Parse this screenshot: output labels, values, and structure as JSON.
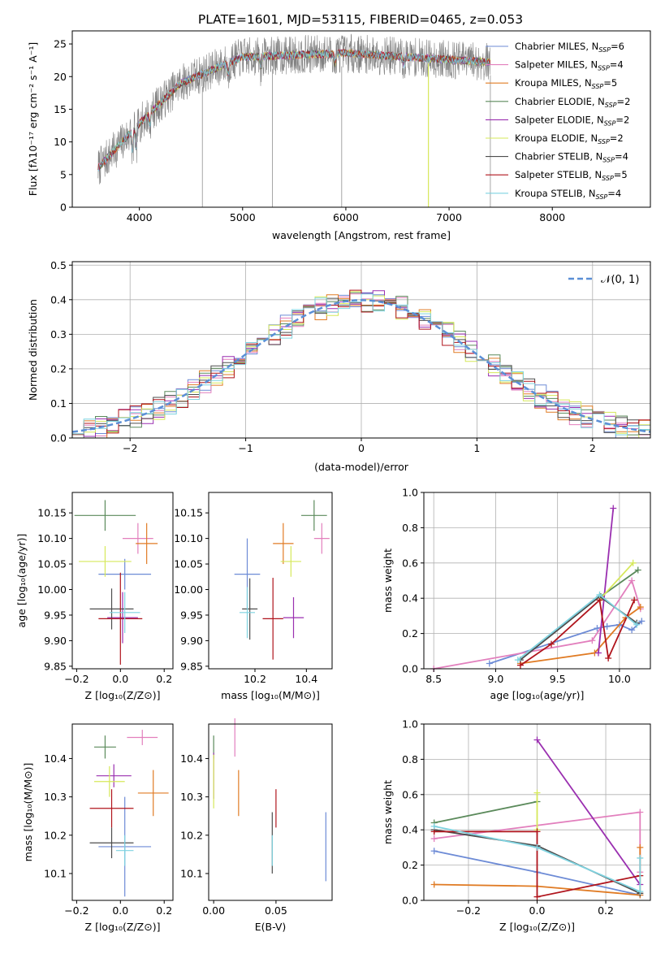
{
  "title": "PLATE=1601, MJD=53115, FIBERID=0465, z=0.053",
  "models": [
    {
      "label": "Chabrier MILES, N",
      "sub": "SSP",
      "suffix": "=6",
      "color": "#6d8bd6"
    },
    {
      "label": "Salpeter MILES, N",
      "sub": "SSP",
      "suffix": "=4",
      "color": "#e27fbd"
    },
    {
      "label": "Kroupa MILES, N",
      "sub": "SSP",
      "suffix": "=5",
      "color": "#e07b24"
    },
    {
      "label": "Chabrier ELODIE, N",
      "sub": "SSP",
      "suffix": "=2",
      "color": "#5b8a5b"
    },
    {
      "label": "Salpeter ELODIE, N",
      "sub": "SSP",
      "suffix": "=2",
      "color": "#9a2fb0"
    },
    {
      "label": "Kroupa ELODIE, N",
      "sub": "SSP",
      "suffix": "=2",
      "color": "#d6e85a"
    },
    {
      "label": "Chabrier STELIB, N",
      "sub": "SSP",
      "suffix": "=4",
      "color": "#4d4d4d"
    },
    {
      "label": "Salpeter STELIB, N",
      "sub": "SSP",
      "suffix": "=5",
      "color": "#b0141c"
    },
    {
      "label": "Kroupa STELIB, N",
      "sub": "SSP",
      "suffix": "=4",
      "color": "#7fd3e0"
    }
  ],
  "chart_data": [
    {
      "id": "spectrum",
      "type": "line",
      "xlabel": "wavelength [Angstrom, rest frame]",
      "ylabel": "Flux [fλ10⁻¹⁷ erg cm⁻² s⁻¹ A⁻¹]",
      "xlim": [
        3350,
        8950
      ],
      "ylim": [
        0,
        27
      ],
      "xticks": [
        "4000",
        "5000",
        "6000",
        "7000",
        "8000"
      ],
      "yticks": [
        "0",
        "5",
        "10",
        "15",
        "20",
        "25"
      ],
      "data_range": [
        3600,
        7400
      ],
      "observed_color": "#808080",
      "grid": false,
      "legend": "right"
    },
    {
      "id": "residuals",
      "type": "bar",
      "xlabel": "(data-model)/error",
      "ylabel": "Normed distribution",
      "xlim": [
        -2.5,
        2.5
      ],
      "ylim": [
        0,
        0.51
      ],
      "xticks": [
        "−2",
        "−1",
        "0",
        "1",
        "2"
      ],
      "yticks": [
        "0.0",
        "0.1",
        "0.2",
        "0.3",
        "0.4",
        "0.5"
      ],
      "bin_width": 0.1,
      "legend_label": "𝒩(0, 1)",
      "grid": true,
      "legend": "top-right"
    },
    {
      "id": "age-vs-Z",
      "type": "scatter",
      "xlabel": "Z [log₁₀(Z/Z⊙)]",
      "ylabel": "age  [log₁₀(age/yr)]",
      "xticks": [
        "−0.2",
        "0.0",
        "0.2"
      ],
      "yticks": [
        "9.85",
        "9.90",
        "9.95",
        "10.00",
        "10.05",
        "10.10",
        "10.15"
      ],
      "points": [
        {
          "x": 0.02,
          "y": 10.03,
          "xerr": 0.12,
          "yerr": 0.03
        },
        {
          "x": 0.08,
          "y": 10.1,
          "xerr": 0.07,
          "yerr": 0.03
        },
        {
          "x": 0.12,
          "y": 10.09,
          "xerr": 0.05,
          "yerr": 0.04
        },
        {
          "x": -0.07,
          "y": 10.145,
          "xerr": 0.14,
          "yerr": 0.03
        },
        {
          "x": 0.01,
          "y": 9.945,
          "xerr": 0.07,
          "yerr": 0.05
        },
        {
          "x": -0.07,
          "y": 10.055,
          "xerr": 0.12,
          "yerr": 0.03
        },
        {
          "x": -0.04,
          "y": 9.962,
          "xerr": 0.1,
          "yerr": 0.04
        },
        {
          "x": 0.0,
          "y": 9.943,
          "xerr": 0.1,
          "yerr": 0.09
        },
        {
          "x": 0.02,
          "y": 9.955,
          "xerr": 0.07,
          "yerr": 0.04
        }
      ]
    },
    {
      "id": "age-vs-mass",
      "type": "scatter",
      "xlabel": "mass [log₁₀(M/M⊙)]",
      "ylabel": "",
      "xticks": [
        "10.2",
        "10.4"
      ],
      "yticks": [
        "9.85",
        "9.90",
        "9.95",
        "10.00",
        "10.05",
        "10.10",
        "10.15"
      ],
      "points": [
        {
          "x": 10.17,
          "y": 10.03,
          "xerr": 0.05,
          "yerr": 0.07
        },
        {
          "x": 10.46,
          "y": 10.1,
          "xerr": 0.03,
          "yerr": 0.03
        },
        {
          "x": 10.31,
          "y": 10.09,
          "xerr": 0.04,
          "yerr": 0.04
        },
        {
          "x": 10.43,
          "y": 10.145,
          "xerr": 0.05,
          "yerr": 0.03
        },
        {
          "x": 10.35,
          "y": 9.945,
          "xerr": 0.04,
          "yerr": 0.04
        },
        {
          "x": 10.34,
          "y": 10.055,
          "xerr": 0.04,
          "yerr": 0.03
        },
        {
          "x": 10.18,
          "y": 9.962,
          "xerr": 0.03,
          "yerr": 0.06
        },
        {
          "x": 10.27,
          "y": 9.943,
          "xerr": 0.04,
          "yerr": 0.08
        },
        {
          "x": 10.17,
          "y": 9.955,
          "xerr": 0.03,
          "yerr": 0.05
        }
      ]
    },
    {
      "id": "massweight-vs-age",
      "type": "line",
      "xlabel": "age  [log₁₀(age/yr)]",
      "ylabel": "mass weight",
      "xlim": [
        8.42,
        10.25
      ],
      "ylim": [
        0,
        1
      ],
      "xticks": [
        "8.5",
        "9.0",
        "9.5",
        "10.0"
      ],
      "yticks": [
        "0.0",
        "0.2",
        "0.4",
        "0.6",
        "0.8",
        "1.0"
      ],
      "grid": true,
      "series": [
        {
          "values": [
            [
              8.95,
              0.03
            ],
            [
              9.82,
              0.23
            ],
            [
              9.9,
              0.24
            ],
            [
              10.0,
              0.25
            ],
            [
              10.1,
              0.22
            ],
            [
              10.18,
              0.27
            ]
          ]
        },
        {
          "values": [
            [
              8.5,
              0.0
            ],
            [
              9.78,
              0.16
            ],
            [
              10.1,
              0.5
            ],
            [
              10.17,
              0.34
            ]
          ]
        },
        {
          "values": [
            [
              9.2,
              0.03
            ],
            [
              9.8,
              0.09
            ],
            [
              10.05,
              0.29
            ],
            [
              10.17,
              0.35
            ]
          ]
        },
        {
          "values": [
            [
              9.85,
              0.41
            ],
            [
              10.15,
              0.56
            ]
          ]
        },
        {
          "values": [
            [
              9.83,
              0.09
            ],
            [
              9.95,
              0.91
            ]
          ]
        },
        {
          "values": [
            [
              9.85,
              0.4
            ],
            [
              10.11,
              0.6
            ]
          ]
        },
        {
          "values": [
            [
              9.2,
              0.05
            ],
            [
              9.84,
              0.41
            ],
            [
              10.14,
              0.26
            ]
          ]
        },
        {
          "values": [
            [
              9.2,
              0.02
            ],
            [
              9.45,
              0.14
            ],
            [
              9.84,
              0.39
            ],
            [
              9.91,
              0.06
            ],
            [
              10.12,
              0.39
            ]
          ]
        },
        {
          "values": [
            [
              9.18,
              0.05
            ],
            [
              9.84,
              0.42
            ],
            [
              10.14,
              0.25
            ]
          ]
        }
      ]
    },
    {
      "id": "mass-vs-Z",
      "type": "scatter",
      "xlabel": "Z [log₁₀(Z/Z⊙)]",
      "ylabel": "mass [log₁₀(M/M⊙)]",
      "xticks": [
        "−0.2",
        "0.0",
        "0.2"
      ],
      "yticks": [
        "10.1",
        "10.2",
        "10.3",
        "10.4"
      ],
      "points": [
        {
          "x": 0.02,
          "y": 10.17,
          "xerr": 0.12,
          "yerr": 0.13
        },
        {
          "x": 0.1,
          "y": 10.455,
          "xerr": 0.07,
          "yerr": 0.02
        },
        {
          "x": 0.15,
          "y": 10.31,
          "xerr": 0.07,
          "yerr": 0.06
        },
        {
          "x": -0.07,
          "y": 10.43,
          "xerr": 0.05,
          "yerr": 0.03
        },
        {
          "x": -0.03,
          "y": 10.355,
          "xerr": 0.08,
          "yerr": 0.03
        },
        {
          "x": -0.05,
          "y": 10.34,
          "xerr": 0.07,
          "yerr": 0.04
        },
        {
          "x": -0.04,
          "y": 10.18,
          "xerr": 0.1,
          "yerr": 0.04
        },
        {
          "x": -0.04,
          "y": 10.27,
          "xerr": 0.1,
          "yerr": 0.05
        },
        {
          "x": 0.02,
          "y": 10.16,
          "xerr": 0.04,
          "yerr": 0.04
        }
      ]
    },
    {
      "id": "mass-vs-EBV",
      "type": "scatter",
      "xlabel": "E(B-V)",
      "ylabel": "",
      "xticks": [
        "0.00",
        "0.05"
      ],
      "yticks": [
        "10.1",
        "10.2",
        "10.3",
        "10.4"
      ],
      "points": [
        {
          "x": 0.09,
          "y": 10.17,
          "yerr": 0.09
        },
        {
          "x": 0.017,
          "y": 10.455,
          "yerr": 0.05
        },
        {
          "x": 0.02,
          "y": 10.31,
          "yerr": 0.06
        },
        {
          "x": 0.0,
          "y": 10.43,
          "yerr": 0.03
        },
        {
          "x": 0.0,
          "y": 10.355,
          "yerr": 0.06
        },
        {
          "x": 0.0,
          "y": 10.34,
          "yerr": 0.07
        },
        {
          "x": 0.047,
          "y": 10.18,
          "yerr": 0.08
        },
        {
          "x": 0.05,
          "y": 10.27,
          "yerr": 0.05
        },
        {
          "x": 0.047,
          "y": 10.16,
          "yerr": 0.04
        }
      ]
    },
    {
      "id": "massweight-vs-Z",
      "type": "line",
      "xlabel": "Z [log₁₀(Z/Z⊙)]",
      "ylabel": "mass weight",
      "xlim": [
        -0.33,
        0.33
      ],
      "ylim": [
        0,
        1
      ],
      "xticks": [
        "−0.2",
        "0.0",
        "0.2"
      ],
      "yticks": [
        "0.0",
        "0.2",
        "0.4",
        "0.6",
        "0.8",
        "1.0"
      ],
      "grid": true,
      "series": [
        {
          "values": [
            [
              -0.3,
              0.28
            ],
            [
              0.0,
              0.16
            ],
            [
              0.3,
              0.03
            ]
          ]
        },
        {
          "values": [
            [
              -0.3,
              0.35
            ],
            [
              0.3,
              0.5
            ],
            [
              0.3,
              0.16
            ]
          ]
        },
        {
          "values": [
            [
              -0.3,
              0.09
            ],
            [
              0.0,
              0.08
            ],
            [
              0.3,
              0.03
            ],
            [
              0.3,
              0.3
            ]
          ]
        },
        {
          "values": [
            [
              -0.3,
              0.44
            ],
            [
              0.0,
              0.56
            ]
          ]
        },
        {
          "values": [
            [
              0.0,
              0.91
            ],
            [
              0.3,
              0.09
            ]
          ]
        },
        {
          "values": [
            [
              0.0,
              0.61
            ],
            [
              0.0,
              0.4
            ]
          ]
        },
        {
          "values": [
            [
              -0.3,
              0.4
            ],
            [
              0.0,
              0.31
            ],
            [
              0.3,
              0.04
            ]
          ]
        },
        {
          "values": [
            [
              -0.3,
              0.39
            ],
            [
              0.0,
              0.39
            ],
            [
              0.0,
              0.02
            ],
            [
              0.3,
              0.14
            ]
          ]
        },
        {
          "values": [
            [
              -0.3,
              0.42
            ],
            [
              0.0,
              0.3
            ],
            [
              0.3,
              0.05
            ],
            [
              0.3,
              0.24
            ]
          ]
        }
      ]
    }
  ]
}
